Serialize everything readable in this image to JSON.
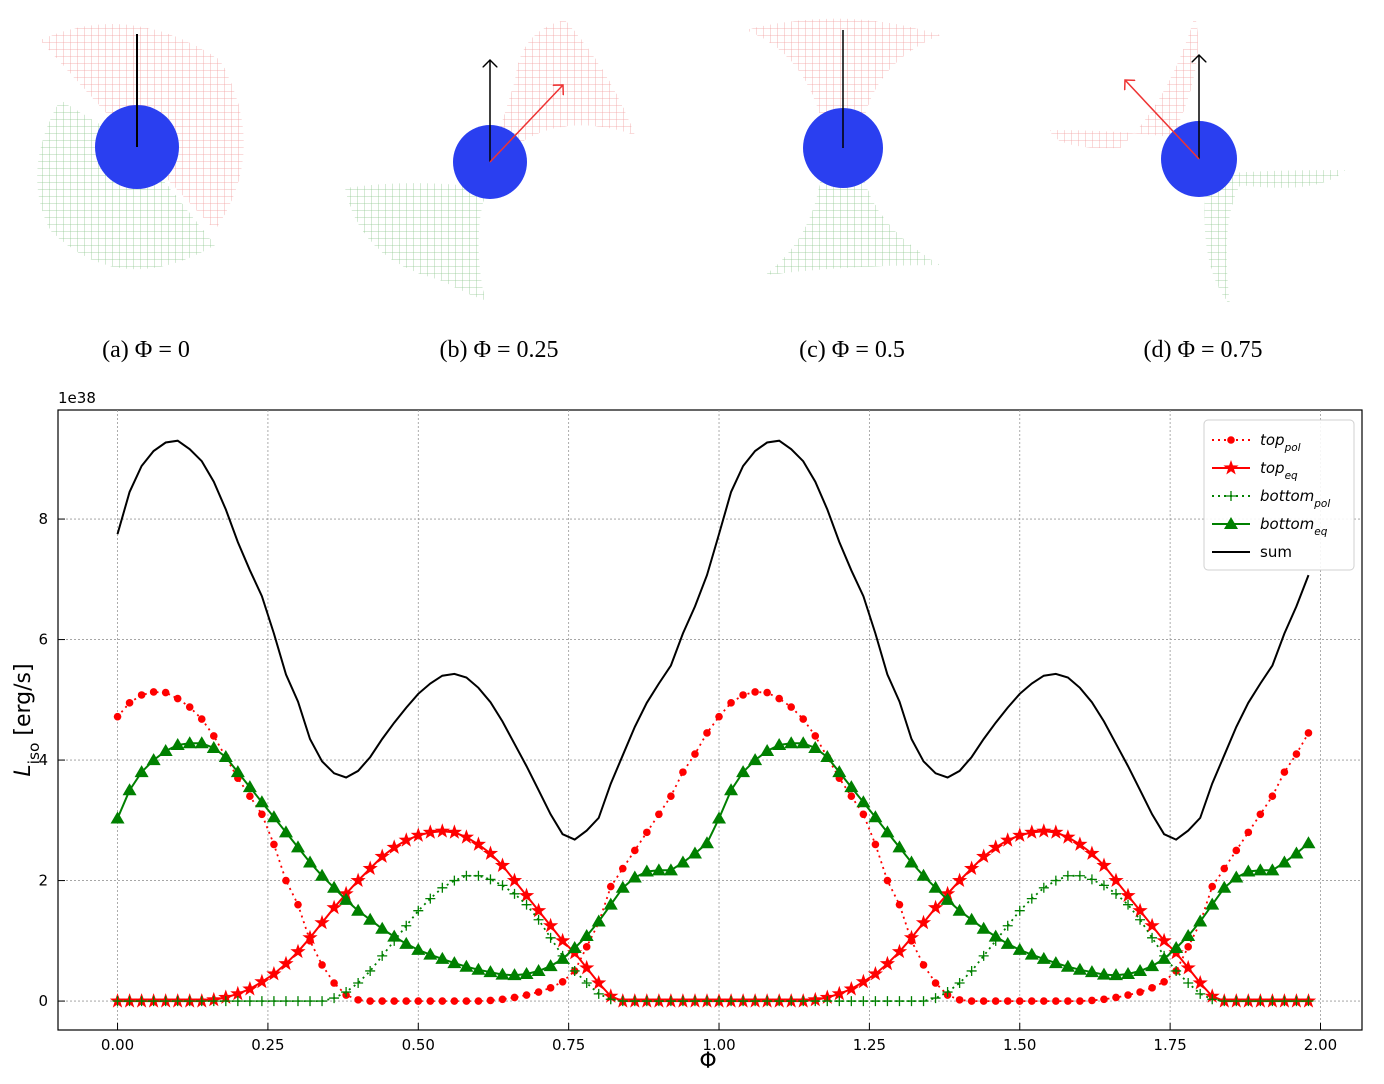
{
  "captions": [
    "(a) Φ = 0",
    "(b) Φ = 0.25",
    "(c) Φ = 0.5",
    "(d) Φ = 0.75"
  ],
  "chart_data": {
    "type": "line",
    "xlabel": "Φ",
    "ylabel": "L_iso [erg/s]",
    "y_offset_label": "1e38",
    "xlim": [
      -0.099,
      2.069
    ],
    "ylim": [
      -0.48,
      9.81
    ],
    "xticks": [
      {
        "value": 0,
        "label": "0.00"
      },
      {
        "value": 0.25,
        "label": "0.25"
      },
      {
        "value": 0.5,
        "label": "0.50"
      },
      {
        "value": 0.75,
        "label": "0.75"
      },
      {
        "value": 1,
        "label": "1.00"
      },
      {
        "value": 1.25,
        "label": "1.25"
      },
      {
        "value": 1.5,
        "label": "1.50"
      },
      {
        "value": 1.75,
        "label": "1.75"
      },
      {
        "value": 2,
        "label": "2.00"
      }
    ],
    "yticks": [
      0,
      2,
      4,
      6,
      8
    ],
    "grid": true,
    "legend": "upper right",
    "x": [
      0,
      0.02,
      0.04,
      0.06,
      0.08,
      0.1,
      0.12,
      0.14,
      0.16,
      0.18,
      0.2,
      0.22,
      0.24,
      0.26,
      0.28,
      0.3,
      0.32,
      0.34,
      0.36,
      0.38,
      0.4,
      0.42,
      0.44,
      0.46,
      0.48,
      0.5,
      0.52,
      0.54,
      0.56,
      0.58,
      0.6,
      0.62,
      0.64,
      0.66,
      0.68,
      0.7,
      0.72,
      0.74,
      0.76,
      0.78,
      0.8,
      0.82,
      0.84,
      0.86,
      0.88,
      0.9,
      0.92,
      0.94,
      0.96,
      0.98,
      1,
      1.02,
      1.04,
      1.06,
      1.08,
      1.1,
      1.12,
      1.14,
      1.16,
      1.18,
      1.2,
      1.22,
      1.24,
      1.26,
      1.28,
      1.3,
      1.32,
      1.34,
      1.36,
      1.38,
      1.4,
      1.42,
      1.44,
      1.46,
      1.48,
      1.5,
      1.52,
      1.54,
      1.56,
      1.58,
      1.6,
      1.62,
      1.64,
      1.66,
      1.68,
      1.7,
      1.72,
      1.74,
      1.76,
      1.78,
      1.8,
      1.82,
      1.84,
      1.86,
      1.88,
      1.9,
      1.92,
      1.94,
      1.96,
      1.98
    ],
    "series": [
      {
        "name": "top_pol",
        "color": "#ff0000",
        "linestyle": "dotted",
        "marker": "dot",
        "values": [
          4.72,
          4.95,
          5.08,
          5.13,
          5.12,
          5.02,
          4.88,
          4.68,
          4.4,
          4.05,
          3.7,
          3.4,
          3.1,
          2.6,
          2.0,
          1.6,
          1.0,
          0.6,
          0.3,
          0.1,
          0.02,
          0,
          0,
          0,
          0,
          0,
          0,
          0,
          0,
          0,
          0,
          0.01,
          0.03,
          0.06,
          0.1,
          0.15,
          0.22,
          0.32,
          0.5,
          0.9,
          1.3,
          1.9,
          2.2,
          2.5,
          2.8,
          3.1,
          3.4,
          3.8,
          4.1,
          4.45,
          4.72,
          4.95,
          5.08,
          5.13,
          5.12,
          5.02,
          4.88,
          4.68,
          4.4,
          4.05,
          3.7,
          3.4,
          3.1,
          2.6,
          2.0,
          1.6,
          1.0,
          0.6,
          0.3,
          0.1,
          0.02,
          0,
          0,
          0,
          0,
          0,
          0,
          0,
          0,
          0,
          0,
          0.01,
          0.03,
          0.06,
          0.1,
          0.15,
          0.22,
          0.32,
          0.5,
          0.9,
          1.3,
          1.9,
          2.2,
          2.5,
          2.8,
          3.1,
          3.4,
          3.8,
          4.1,
          4.45
        ]
      },
      {
        "name": "top_eq",
        "color": "#ff0000",
        "linestyle": "solid",
        "marker": "star",
        "values": [
          0,
          0,
          0,
          0,
          0,
          0,
          0,
          0,
          0.02,
          0.06,
          0.12,
          0.2,
          0.32,
          0.45,
          0.62,
          0.82,
          1.05,
          1.3,
          1.55,
          1.78,
          2.0,
          2.2,
          2.4,
          2.55,
          2.67,
          2.75,
          2.8,
          2.82,
          2.8,
          2.72,
          2.6,
          2.45,
          2.25,
          2.0,
          1.75,
          1.5,
          1.25,
          1.0,
          0.8,
          0.55,
          0.3,
          0.08,
          0,
          0,
          0,
          0,
          0,
          0,
          0,
          0,
          0,
          0,
          0,
          0,
          0,
          0,
          0,
          0,
          0.02,
          0.06,
          0.12,
          0.2,
          0.32,
          0.45,
          0.62,
          0.82,
          1.05,
          1.3,
          1.55,
          1.78,
          2.0,
          2.2,
          2.4,
          2.55,
          2.67,
          2.75,
          2.8,
          2.82,
          2.8,
          2.72,
          2.6,
          2.45,
          2.25,
          2.0,
          1.75,
          1.5,
          1.25,
          1.0,
          0.8,
          0.55,
          0.3,
          0.08,
          0,
          0,
          0,
          0,
          0,
          0,
          0,
          0
        ]
      },
      {
        "name": "bottom_pol",
        "color": "#008000",
        "linestyle": "dotted",
        "marker": "plus",
        "values": [
          0,
          0,
          0,
          0,
          0,
          0,
          0,
          0,
          0,
          0,
          0,
          0,
          0,
          0,
          0,
          0,
          0,
          0,
          0.05,
          0.15,
          0.3,
          0.5,
          0.75,
          1.0,
          1.25,
          1.5,
          1.7,
          1.88,
          2.0,
          2.08,
          2.08,
          2.02,
          1.92,
          1.78,
          1.6,
          1.35,
          1.05,
          0.75,
          0.5,
          0.3,
          0.12,
          0.03,
          0,
          0,
          0,
          0,
          0,
          0,
          0,
          0,
          0,
          0,
          0,
          0,
          0,
          0,
          0,
          0,
          0,
          0,
          0,
          0,
          0,
          0,
          0,
          0,
          0,
          0,
          0.05,
          0.15,
          0.3,
          0.5,
          0.75,
          1.0,
          1.25,
          1.5,
          1.7,
          1.88,
          2.0,
          2.08,
          2.08,
          2.02,
          1.92,
          1.78,
          1.6,
          1.35,
          1.05,
          0.75,
          0.5,
          0.3,
          0.12,
          0.03,
          0,
          0,
          0,
          0,
          0,
          0,
          0,
          0
        ]
      },
      {
        "name": "bottom_eq",
        "color": "#008000",
        "linestyle": "solid",
        "marker": "triangle",
        "values": [
          3.03,
          3.5,
          3.8,
          4.0,
          4.15,
          4.25,
          4.28,
          4.28,
          4.2,
          4.05,
          3.8,
          3.55,
          3.3,
          3.05,
          2.8,
          2.55,
          2.3,
          2.08,
          1.88,
          1.68,
          1.5,
          1.35,
          1.2,
          1.07,
          0.95,
          0.85,
          0.77,
          0.7,
          0.63,
          0.57,
          0.52,
          0.48,
          0.44,
          0.43,
          0.45,
          0.5,
          0.58,
          0.7,
          0.88,
          1.08,
          1.32,
          1.6,
          1.88,
          2.05,
          2.15,
          2.17,
          2.17,
          2.3,
          2.45,
          2.62,
          3.03,
          3.5,
          3.8,
          4.0,
          4.15,
          4.25,
          4.28,
          4.28,
          4.2,
          4.05,
          3.8,
          3.55,
          3.3,
          3.05,
          2.8,
          2.55,
          2.3,
          2.08,
          1.88,
          1.68,
          1.5,
          1.35,
          1.2,
          1.07,
          0.95,
          0.85,
          0.77,
          0.7,
          0.63,
          0.57,
          0.52,
          0.48,
          0.44,
          0.43,
          0.45,
          0.5,
          0.58,
          0.7,
          0.88,
          1.08,
          1.32,
          1.6,
          1.88,
          2.05,
          2.15,
          2.17,
          2.17,
          2.3,
          2.45,
          2.62
        ]
      },
      {
        "name": "sum",
        "color": "#000000",
        "linestyle": "solid",
        "marker": "none",
        "values": [
          7.75,
          8.45,
          8.88,
          9.13,
          9.27,
          9.3,
          9.16,
          8.96,
          8.62,
          8.16,
          7.62,
          7.15,
          6.72,
          6.1,
          5.42,
          4.97,
          4.35,
          3.98,
          3.78,
          3.71,
          3.82,
          4.05,
          4.35,
          4.62,
          4.87,
          5.1,
          5.27,
          5.4,
          5.43,
          5.37,
          5.2,
          4.96,
          4.64,
          4.27,
          3.9,
          3.5,
          3.1,
          2.77,
          2.68,
          2.83,
          3.04,
          3.61,
          4.08,
          4.55,
          4.95,
          5.27,
          5.57,
          6.1,
          6.55,
          7.07,
          7.75,
          8.45,
          8.88,
          9.13,
          9.27,
          9.3,
          9.16,
          8.96,
          8.62,
          8.16,
          7.62,
          7.15,
          6.72,
          6.1,
          5.42,
          4.97,
          4.35,
          3.98,
          3.78,
          3.71,
          3.82,
          4.05,
          4.35,
          4.62,
          4.87,
          5.1,
          5.27,
          5.4,
          5.43,
          5.37,
          5.2,
          4.96,
          4.64,
          4.27,
          3.9,
          3.5,
          3.1,
          2.77,
          2.68,
          2.83,
          3.04,
          3.61,
          4.08,
          4.55,
          4.95,
          5.27,
          5.57,
          6.1,
          6.55,
          7.07
        ]
      }
    ]
  }
}
